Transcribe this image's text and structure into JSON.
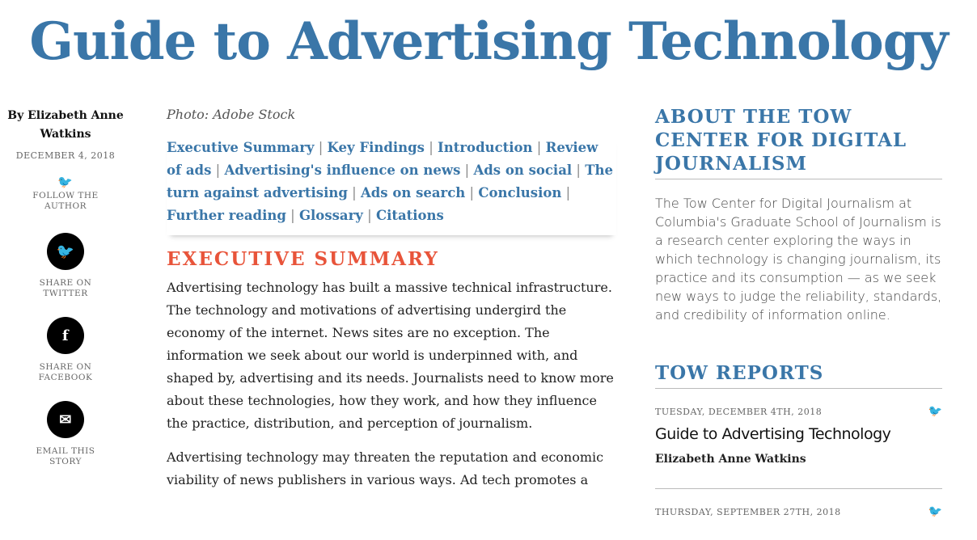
{
  "title": "Guide to Advertising Technology",
  "author": {
    "byline": "By Elizabeth Anne Watkins",
    "date": "DECEMBER 4, 2018",
    "follow": "FOLLOW THE AUTHOR"
  },
  "share": [
    {
      "icon": "twitter-icon",
      "glyph": "🐦",
      "label": "SHARE ON TWITTER"
    },
    {
      "icon": "facebook-icon",
      "glyph": "f",
      "label": "SHARE ON FACEBOOK"
    },
    {
      "icon": "email-icon",
      "glyph": "✉",
      "label": "EMAIL THIS STORY"
    }
  ],
  "article": {
    "credit": "Photo: Adobe Stock",
    "toc": [
      "Executive Summary",
      "Key Findings",
      "Introduction",
      "Review of ads",
      "Advertising's influence on news",
      "Ads on social",
      "The turn against advertising",
      "Ads on search",
      "Conclusion",
      "Further reading",
      "Glossary",
      "Citations"
    ],
    "section": "EXECUTIVE SUMMARY",
    "paragraphs": [
      "Advertising technology has built a massive technical infrastructure. The technology and motivations of advertising undergird the economy of the internet. News sites are no exception. The information we seek about our world is underpinned with, and shaped by, advertising and its needs. Journalists need to know more about these technologies, how they work, and how they influence the practice, distribution, and perception of journalism.",
      "Advertising technology may threaten the reputation and economic viability of news publishers in various ways. Ad tech promotes a"
    ]
  },
  "sidebar": {
    "about_title": "ABOUT THE TOW CENTER FOR DIGITAL JOURNALISM",
    "about_text": "The Tow Center for Digital Journalism at Columbia's Graduate School of Journalism is a research center exploring the ways in which technology is changing journalism, its practice and its consumption — as we seek new ways to judge the reliability, standards, and credibility of information online.",
    "reports_title": "TOW REPORTS",
    "reports": [
      {
        "date": "TUESDAY, DECEMBER 4TH, 2018",
        "title": "Guide to Advertising Technology",
        "author": "Elizabeth Anne Watkins"
      },
      {
        "date": "THURSDAY, SEPTEMBER 27TH, 2018"
      }
    ]
  },
  "colors": {
    "accent": "#3a76a8",
    "section": "#e8543a"
  }
}
